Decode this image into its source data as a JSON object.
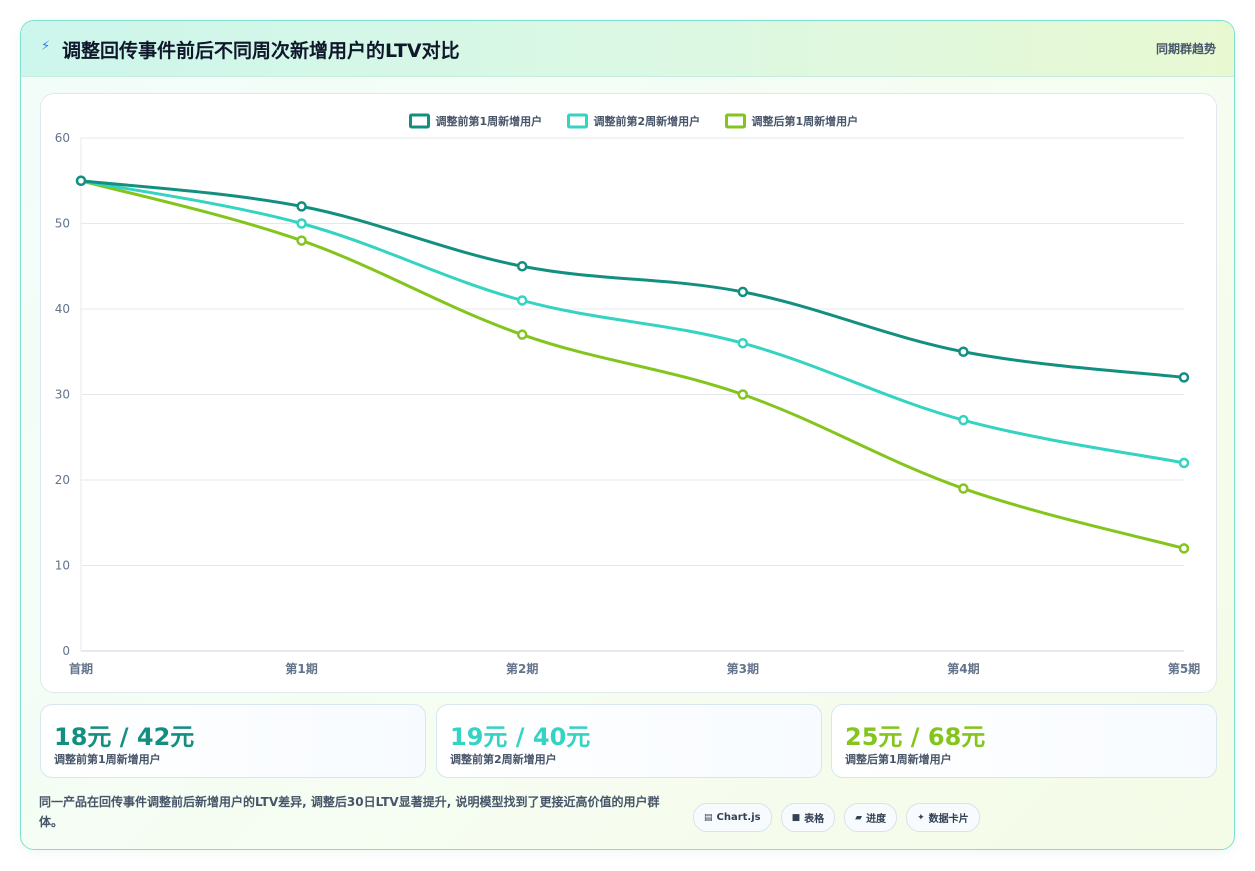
{
  "header": {
    "icon": "lightning-icon",
    "title": "调整回传事件前后不同周次新增用户的LTV对比",
    "right_label": "同期群趋势"
  },
  "chart_data": {
    "type": "line",
    "title": "",
    "xlabel": "",
    "ylabel": "",
    "categories": [
      "首期",
      "第1期",
      "第2期",
      "第3期",
      "第4期",
      "第5期"
    ],
    "ylim": [
      0,
      60
    ],
    "yticks": [
      0,
      10,
      20,
      30,
      40,
      50,
      60
    ],
    "grid": true,
    "legend_position": "top-center",
    "series": [
      {
        "name": "调整前第1周新增用户",
        "color": "#138f80",
        "values": [
          55,
          52,
          45,
          42,
          35,
          32
        ]
      },
      {
        "name": "调整前第2周新增用户",
        "color": "#34d3c2",
        "values": [
          55,
          50,
          41,
          36,
          27,
          22
        ]
      },
      {
        "name": "调整后第1周新增用户",
        "color": "#84c51d",
        "values": [
          55,
          48,
          37,
          30,
          19,
          12
        ]
      }
    ]
  },
  "kpis": [
    {
      "value": "18元 / 42元",
      "label": "调整前第1周新增用户",
      "color": "#138f80"
    },
    {
      "value": "19元 / 40元",
      "label": "调整前第2周新增用户",
      "color": "#34d3c2"
    },
    {
      "value": "25元 / 68元",
      "label": "调整后第1周新增用户",
      "color": "#84c51d"
    }
  ],
  "footnote": "同一产品在回传事件调整前后新增用户的LTV差异, 调整后30日LTV显著提升, 说明模型找到了更接近高价值的用户群体。",
  "tags": [
    {
      "icon": "chart-icon",
      "glyph": "▤",
      "label": "Chart.js"
    },
    {
      "icon": "table-icon",
      "glyph": "■",
      "label": "表格"
    },
    {
      "icon": "progress-icon",
      "glyph": "▰",
      "label": "进度"
    },
    {
      "icon": "sparkle-icon",
      "glyph": "✦",
      "label": "数据卡片"
    }
  ]
}
